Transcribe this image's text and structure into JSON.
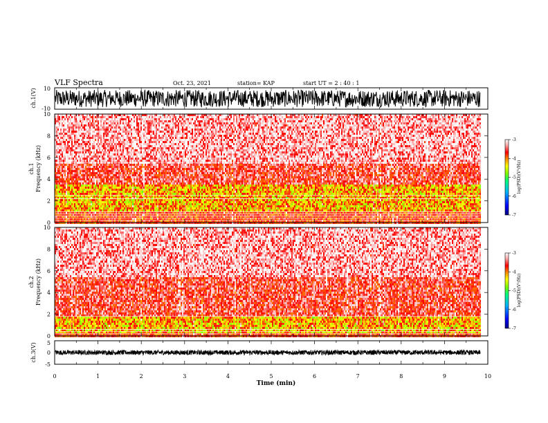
{
  "header": {
    "title": "VLF Spectra",
    "date": "Oct. 23, 2021",
    "station": "station= KAP",
    "start": "start  UT =   2  : 40 : 1"
  },
  "colors": {
    "panel_frame": "#000000",
    "colormap": [
      "#000080",
      "#0000ff",
      "#00b4ff",
      "#00ff80",
      "#80ff00",
      "#ffff00",
      "#ff8000",
      "#ff0000",
      "#ffb0b0",
      "#ffffff"
    ]
  },
  "chart_data": [
    {
      "id": "ch1-waveform",
      "type": "line",
      "ylabel": "ch.1(V)",
      "ylim": [
        -10,
        10
      ],
      "yticks": [
        "10",
        "-10"
      ],
      "xlim": [
        0,
        10
      ],
      "x_extent_min": 9.83,
      "noise_amplitude": [
        -8,
        8
      ]
    },
    {
      "id": "ch1-spectrogram",
      "type": "heatmap",
      "ylabel": "ch.1\nFrequency (kHz)",
      "ylabel_lines": [
        "ch.1",
        "Frequency (kHz)"
      ],
      "ylim": [
        0,
        10
      ],
      "yticks": [
        "0",
        "2",
        "4",
        "6",
        "8",
        "10"
      ],
      "xlim": [
        0,
        10
      ],
      "x_extent_min": 9.83,
      "colorbar": {
        "label": "log(PSD)(V²/Hz)",
        "range": [
          -7,
          -3
        ],
        "ticks": [
          "-3",
          "-4",
          "-5",
          "-6",
          "-7"
        ]
      },
      "features": {
        "strong_band_khz": [
          1.2,
          3.6
        ],
        "hum_lines_khz": [
          0.2,
          0.4,
          0.6,
          0.8,
          1.0,
          2.2,
          2.5,
          5.5
        ]
      }
    },
    {
      "id": "ch2-spectrogram",
      "type": "heatmap",
      "ylabel": "ch.2\nFrequency (kHz)",
      "ylabel_lines": [
        "ch.2",
        "Frequency (kHz)"
      ],
      "ylim": [
        0,
        10
      ],
      "yticks": [
        "0",
        "2",
        "4",
        "6",
        "8",
        "10"
      ],
      "xlim": [
        0,
        10
      ],
      "x_extent_min": 9.83,
      "colorbar": {
        "label": "log(PSD)(V²/Hz)",
        "range": [
          -7,
          -3
        ],
        "ticks": [
          "-3",
          "-4",
          "-5",
          "-6",
          "-7"
        ]
      },
      "features": {
        "strong_band_khz": [
          0.3,
          1.9
        ],
        "hum_lines_khz": [
          0.2,
          0.4,
          0.6,
          1.8
        ]
      }
    },
    {
      "id": "ch3-waveform",
      "type": "line",
      "ylabel": "ch.3(V)",
      "ylim": [
        -5,
        5
      ],
      "yticks": [
        "5",
        "0",
        "-5"
      ],
      "xlim": [
        0,
        10
      ],
      "x_extent_min": 9.83,
      "noise_amplitude": [
        -1,
        1
      ],
      "xlabel": "Time (min)",
      "xticks": [
        "0",
        "1",
        "2",
        "3",
        "4",
        "5",
        "6",
        "7",
        "8",
        "9",
        "10"
      ]
    }
  ]
}
